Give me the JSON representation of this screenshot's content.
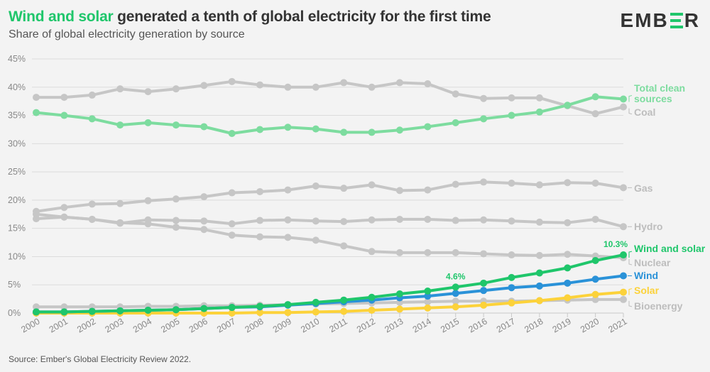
{
  "header": {
    "title_highlight": "Wind and solar",
    "title_rest": " generated a tenth of global electricity for the first time",
    "subtitle": "Share of global electricity generation by source",
    "logo_left": "EMB",
    "logo_right": "R"
  },
  "footer": {
    "source": "Source: Ember's Global Electricity Review 2022."
  },
  "colors": {
    "clean": "#7ddc9f",
    "grey": "#c6c6c6",
    "grey_label": "#bdbdbd",
    "wind_solar": "#1fc66b",
    "wind": "#2a92d8",
    "solar": "#fcd23a",
    "grid": "#dcdcdc",
    "axis": "#c8c8c8"
  },
  "chart_data": {
    "type": "line",
    "title": "Wind and solar generated a tenth of global electricity for the first time",
    "subtitle": "Share of global electricity generation by source",
    "xlabel": "",
    "ylabel": "",
    "ylim": [
      0,
      45
    ],
    "yticks": [
      0,
      5,
      10,
      15,
      20,
      25,
      30,
      35,
      40,
      45
    ],
    "ytick_labels": [
      "0%",
      "5%",
      "10%",
      "15%",
      "20%",
      "25%",
      "30%",
      "35%",
      "40%",
      "45%"
    ],
    "grid": true,
    "legend": "direct labels at right end of lines",
    "x": [
      "2000",
      "2001",
      "2002",
      "2003",
      "2004",
      "2005",
      "2006",
      "2007",
      "2008",
      "2009",
      "2010",
      "2011",
      "2012",
      "2013",
      "2014",
      "2015",
      "2016",
      "2017",
      "2018",
      "2019",
      "2020",
      "2021"
    ],
    "series": [
      {
        "key": "coal",
        "name": "Coal",
        "color_key": "grey",
        "label_color_key": "grey_label",
        "values": [
          38.2,
          38.2,
          38.6,
          39.7,
          39.2,
          39.7,
          40.3,
          41.0,
          40.4,
          40.0,
          40.0,
          40.8,
          40.0,
          40.8,
          40.6,
          38.8,
          38.0,
          38.1,
          38.1,
          36.7,
          35.3,
          36.5
        ]
      },
      {
        "key": "gas",
        "name": "Gas",
        "color_key": "grey",
        "label_color_key": "grey_label",
        "values": [
          18.0,
          18.7,
          19.3,
          19.4,
          19.9,
          20.2,
          20.6,
          21.3,
          21.5,
          21.8,
          22.5,
          22.1,
          22.7,
          21.7,
          21.8,
          22.8,
          23.2,
          23.0,
          22.7,
          23.1,
          23.0,
          22.2
        ]
      },
      {
        "key": "hydro",
        "name": "Hydro",
        "color_key": "grey",
        "label_color_key": "grey_label",
        "values": [
          16.7,
          17.0,
          16.6,
          15.9,
          16.5,
          16.4,
          16.3,
          15.8,
          16.4,
          16.5,
          16.3,
          16.2,
          16.5,
          16.6,
          16.6,
          16.4,
          16.5,
          16.3,
          16.1,
          16.0,
          16.6,
          15.3
        ]
      },
      {
        "key": "nuclear",
        "name": "Nuclear",
        "color_key": "grey",
        "label_color_key": "grey_label",
        "values": [
          17.5,
          17.0,
          16.6,
          16.0,
          15.8,
          15.2,
          14.8,
          13.8,
          13.5,
          13.4,
          12.9,
          11.9,
          10.9,
          10.7,
          10.7,
          10.7,
          10.5,
          10.3,
          10.2,
          10.4,
          10.1,
          9.8
        ]
      },
      {
        "key": "bioenergy",
        "name": "Bioenergy",
        "color_key": "grey",
        "label_color_key": "grey_label",
        "values": [
          1.1,
          1.1,
          1.1,
          1.1,
          1.2,
          1.2,
          1.3,
          1.3,
          1.4,
          1.5,
          1.6,
          1.7,
          1.8,
          1.9,
          2.0,
          2.1,
          2.1,
          2.1,
          2.2,
          2.3,
          2.4,
          2.4
        ]
      },
      {
        "key": "solar",
        "name": "Solar",
        "color_key": "solar",
        "label_color_key": "solar",
        "values": [
          0.0,
          0.0,
          0.0,
          0.0,
          0.0,
          0.0,
          0.0,
          0.0,
          0.1,
          0.1,
          0.2,
          0.3,
          0.5,
          0.7,
          0.9,
          1.1,
          1.4,
          1.8,
          2.2,
          2.7,
          3.3,
          3.7
        ]
      },
      {
        "key": "wind",
        "name": "Wind",
        "color_key": "wind",
        "label_color_key": "wind",
        "values": [
          0.2,
          0.2,
          0.3,
          0.4,
          0.5,
          0.6,
          0.8,
          1.0,
          1.1,
          1.4,
          1.7,
          2.0,
          2.3,
          2.7,
          3.0,
          3.5,
          4.0,
          4.5,
          4.8,
          5.3,
          6.0,
          6.6
        ]
      },
      {
        "key": "wind_solar",
        "name": "Wind and solar",
        "color_key": "wind_solar",
        "label_color_key": "wind_solar",
        "values": [
          0.2,
          0.2,
          0.3,
          0.4,
          0.5,
          0.6,
          0.8,
          1.0,
          1.2,
          1.5,
          1.9,
          2.3,
          2.8,
          3.4,
          3.9,
          4.6,
          5.3,
          6.3,
          7.1,
          8.0,
          9.3,
          10.3
        ]
      },
      {
        "key": "clean",
        "name": "Total clean sources",
        "label_lines": [
          "Total clean",
          "sources"
        ],
        "color_key": "clean",
        "label_color_key": "clean",
        "values": [
          35.5,
          35.0,
          34.4,
          33.3,
          33.7,
          33.3,
          33.0,
          31.8,
          32.5,
          32.9,
          32.6,
          32.0,
          32.0,
          32.4,
          33.0,
          33.7,
          34.4,
          35.0,
          35.6,
          36.8,
          38.3,
          37.9
        ]
      }
    ],
    "annotations": [
      {
        "series": "wind_solar",
        "x": "2015",
        "text": "4.6%"
      },
      {
        "series": "wind_solar",
        "x": "2021",
        "text": "10.3%"
      }
    ]
  }
}
